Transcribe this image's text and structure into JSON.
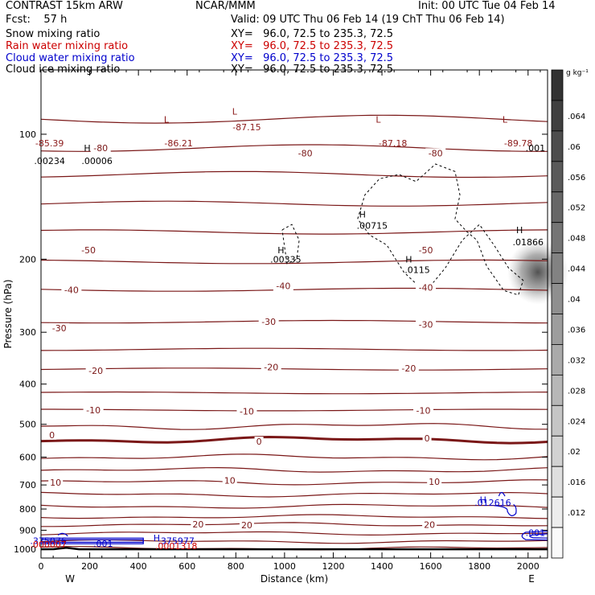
{
  "header": {
    "left1": "CONTRAST 15km ARW",
    "center1": "NCAR/MMM",
    "right1": "Init: 00 UTC Tue 04 Feb 14",
    "fcst": "Fcst:    57 h",
    "valid": "Valid: 09 UTC Thu 06 Feb 14 (19 ChT Thu 06 Feb 14)",
    "fields": [
      {
        "name": "Snow mixing ratio",
        "xy": "XY=   96.0, 72.5 to 235.3, 72.5",
        "color": "#000000"
      },
      {
        "name": "Rain water mixing ratio",
        "xy": "XY=   96.0, 72.5 to 235.3, 72.5",
        "color": "#cc0000"
      },
      {
        "name": "Cloud water mixing ratio",
        "xy": "XY=   96.0, 72.5 to 235.3, 72.5",
        "color": "#0000cc"
      },
      {
        "name": "Cloud ice mixing ratio",
        "xy": "XY=   96.0, 72.5 to 235.3, 72.5",
        "color": "#000000"
      }
    ]
  },
  "chart_data": {
    "type": "cross-section",
    "xlabel": "Distance (km)",
    "ylabel": "Pressure (hPa)",
    "xlim": [
      0,
      2080
    ],
    "ylim": [
      1050,
      70
    ],
    "yscale": "log",
    "xticks": [
      0,
      200,
      400,
      600,
      800,
      1000,
      1200,
      1400,
      1600,
      1800,
      2000
    ],
    "yticks": [
      100,
      200,
      300,
      400,
      500,
      600,
      700,
      800,
      900,
      1000
    ],
    "x_end_labels": {
      "left": "W",
      "right": "E"
    },
    "temperature_contour_labels": [
      {
        "text": "-80",
        "x": 245,
        "p": 108
      },
      {
        "text": "-80",
        "x": 1085,
        "p": 111
      },
      {
        "text": "-80",
        "x": 1620,
        "p": 111
      },
      {
        "text": "-50",
        "x": 195,
        "p": 190
      },
      {
        "text": "-50",
        "x": 1580,
        "p": 190
      },
      {
        "text": "-40",
        "x": 125,
        "p": 237
      },
      {
        "text": "-40",
        "x": 995,
        "p": 232
      },
      {
        "text": "-40",
        "x": 1580,
        "p": 234
      },
      {
        "text": "-30",
        "x": 75,
        "p": 293
      },
      {
        "text": "-30",
        "x": 935,
        "p": 283
      },
      {
        "text": "-30",
        "x": 1580,
        "p": 287
      },
      {
        "text": "-20",
        "x": 225,
        "p": 371
      },
      {
        "text": "-20",
        "x": 945,
        "p": 364
      },
      {
        "text": "-20",
        "x": 1510,
        "p": 366
      },
      {
        "text": "-10",
        "x": 215,
        "p": 462
      },
      {
        "text": "-10",
        "x": 845,
        "p": 465
      },
      {
        "text": "-10",
        "x": 1570,
        "p": 463
      },
      {
        "text": "0",
        "x": 45,
        "p": 530
      },
      {
        "text": "0",
        "x": 895,
        "p": 550
      },
      {
        "text": "0",
        "x": 1585,
        "p": 540
      },
      {
        "text": "10",
        "x": 60,
        "p": 690
      },
      {
        "text": "10",
        "x": 775,
        "p": 682
      },
      {
        "text": "10",
        "x": 1615,
        "p": 688
      },
      {
        "text": "20",
        "x": 645,
        "p": 871
      },
      {
        "text": "20",
        "x": 845,
        "p": 875
      },
      {
        "text": "20",
        "x": 1595,
        "p": 872
      }
    ],
    "extrema_labels": [
      {
        "text": "L",
        "x": 515,
        "p": 92,
        "color": "#8b1a1a"
      },
      {
        "text": "L",
        "x": 795,
        "p": 88,
        "color": "#8b1a1a"
      },
      {
        "text": "L",
        "x": 1385,
        "p": 92,
        "color": "#8b1a1a"
      },
      {
        "text": "L",
        "x": 1905,
        "p": 92,
        "color": "#8b1a1a"
      },
      {
        "text": "-85.39",
        "x": 35,
        "p": 105,
        "color": "#8b1a1a"
      },
      {
        "text": "-86.21",
        "x": 565,
        "p": 105,
        "color": "#8b1a1a"
      },
      {
        "text": "-87.15",
        "x": 845,
        "p": 96,
        "color": "#8b1a1a"
      },
      {
        "text": "-87.18",
        "x": 1445,
        "p": 105,
        "color": "#8b1a1a"
      },
      {
        "text": "-89.78",
        "x": 1960,
        "p": 105,
        "color": "#8b1a1a"
      },
      {
        "text": "H",
        "x": 190,
        "p": 108,
        "color": "#000000"
      },
      {
        "text": ".00234",
        "x": 35,
        "p": 116,
        "color": "#000000"
      },
      {
        "text": ".00006",
        "x": 230,
        "p": 116,
        "color": "#000000"
      },
      {
        "text": "H",
        "x": 985,
        "p": 190,
        "color": "#000000"
      },
      {
        "text": ".00335",
        "x": 1005,
        "p": 200,
        "color": "#000000"
      },
      {
        "text": "H",
        "x": 1320,
        "p": 156,
        "color": "#000000"
      },
      {
        "text": ".00715",
        "x": 1360,
        "p": 166,
        "color": "#000000"
      },
      {
        "text": "H",
        "x": 1510,
        "p": 200,
        "color": "#000000"
      },
      {
        "text": ".0115",
        "x": 1545,
        "p": 212,
        "color": "#000000"
      },
      {
        "text": "H",
        "x": 1965,
        "p": 170,
        "color": "#000000"
      },
      {
        "text": ".01866",
        "x": 2000,
        "p": 182,
        "color": "#000000"
      },
      {
        "text": ".001",
        "x": 2030,
        "p": 108,
        "color": "#000000"
      },
      {
        "text": "H",
        "x": 1815,
        "p": 760,
        "color": "#0000cc"
      },
      {
        "text": ".012616",
        "x": 1855,
        "p": 771,
        "color": "#0000cc"
      },
      {
        "text": "H",
        "x": 475,
        "p": 940,
        "color": "#0000cc"
      },
      {
        "text": ".001",
        "x": 255,
        "p": 970,
        "color": "#0000cc"
      },
      {
        "text": ".001",
        "x": 2030,
        "p": 912,
        "color": "#0000cc"
      },
      {
        "text": ".375076",
        "x": 30,
        "p": 953,
        "color": "#0000cc"
      },
      {
        "text": ".375977",
        "x": 555,
        "p": 953,
        "color": "#0000cc"
      },
      {
        "text": ".000007",
        "x": 30,
        "p": 974,
        "color": "#cc0000"
      },
      {
        "text": ".0001318",
        "x": 555,
        "p": 981,
        "color": "#cc0000"
      }
    ],
    "colorbar": {
      "label": "g kg⁻¹",
      "tick_labels": [
        ".012",
        ".016",
        ".02",
        ".024",
        ".028",
        ".032",
        ".036",
        ".04",
        ".044",
        ".048",
        ".052",
        ".056",
        ".06",
        ".064"
      ]
    }
  }
}
